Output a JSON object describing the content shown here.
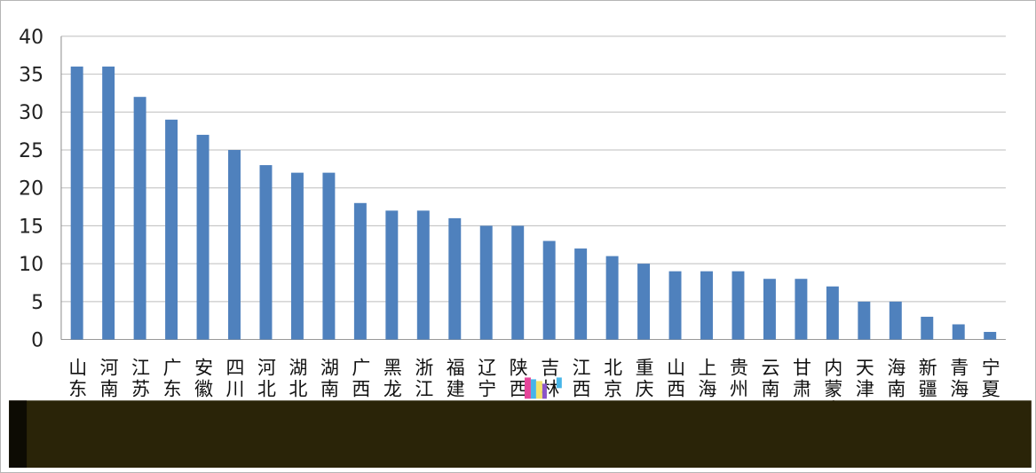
{
  "chart_data": {
    "type": "bar",
    "categories": [
      "山东",
      "河南",
      "江苏",
      "广东",
      "安徽",
      "四川",
      "河北",
      "湖北",
      "湖南",
      "广西",
      "黑龙江",
      "浙江",
      "福建",
      "辽宁",
      "陕西",
      "吉林",
      "江西",
      "北京",
      "重庆",
      "山西",
      "上海",
      "贵州",
      "云南",
      "甘肃",
      "内蒙古",
      "天津",
      "海南",
      "新疆",
      "青海",
      "宁夏"
    ],
    "values": [
      36,
      36,
      32,
      29,
      27,
      25,
      23,
      22,
      22,
      18,
      17,
      17,
      16,
      15,
      15,
      13,
      12,
      11,
      10,
      9,
      9,
      9,
      8,
      8,
      7,
      5,
      5,
      3,
      2,
      1
    ],
    "title": "",
    "xlabel": "",
    "ylabel": "",
    "ylim": [
      0,
      40
    ],
    "yticks": [
      "0",
      "5",
      "10",
      "15",
      "20",
      "25",
      "30",
      "35",
      "40"
    ],
    "grid": true,
    "legend": "none",
    "bar_color": "#4f81bd"
  }
}
